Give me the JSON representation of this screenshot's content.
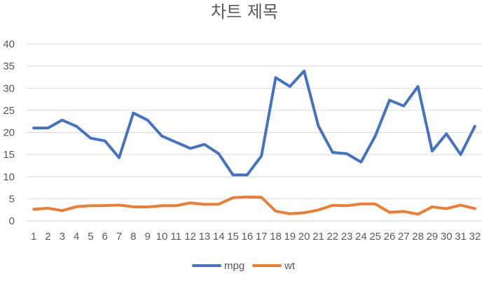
{
  "chart_data": {
    "type": "line",
    "title": "차트 제목",
    "categories": [
      "1",
      "2",
      "3",
      "4",
      "5",
      "6",
      "7",
      "8",
      "9",
      "10",
      "11",
      "12",
      "13",
      "14",
      "15",
      "16",
      "17",
      "18",
      "19",
      "20",
      "21",
      "22",
      "23",
      "24",
      "25",
      "26",
      "27",
      "28",
      "29",
      "30",
      "31",
      "32"
    ],
    "series": [
      {
        "name": "mpg",
        "color": "#4472C4",
        "values": [
          21.0,
          21.0,
          22.8,
          21.4,
          18.7,
          18.1,
          14.3,
          24.4,
          22.8,
          19.2,
          17.8,
          16.4,
          17.3,
          15.2,
          10.4,
          10.4,
          14.7,
          32.4,
          30.4,
          33.9,
          21.5,
          15.5,
          15.2,
          13.3,
          19.2,
          27.3,
          26.0,
          30.4,
          15.8,
          19.7,
          15.0,
          21.4
        ]
      },
      {
        "name": "wt",
        "color": "#ED7D31",
        "values": [
          2.62,
          2.875,
          2.32,
          3.215,
          3.44,
          3.46,
          3.57,
          3.19,
          3.15,
          3.44,
          3.44,
          4.07,
          3.73,
          3.78,
          5.25,
          5.424,
          5.345,
          2.2,
          1.615,
          1.835,
          2.465,
          3.52,
          3.435,
          3.84,
          3.845,
          1.935,
          2.14,
          1.513,
          3.17,
          2.77,
          3.57,
          2.78
        ]
      }
    ],
    "ylim": [
      0,
      40
    ],
    "yticks": [
      0,
      5,
      10,
      15,
      20,
      25,
      30,
      35,
      40
    ],
    "grid": true,
    "legend_position": "bottom"
  }
}
